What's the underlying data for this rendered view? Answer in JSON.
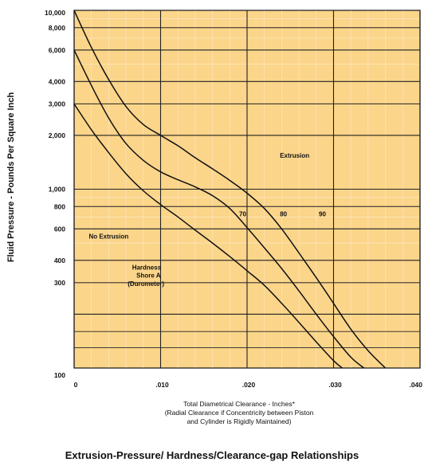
{
  "chart_data": {
    "type": "line",
    "title": "Extrusion-Pressure/ Hardness/Clearance-gap Relationships",
    "ylabel": "Fluid Pressure - Pounds Per Square Inch",
    "xlabel": "Total Diametrical Clearance - Inches*",
    "xlabel_note_line1": "(Radial Clearance if Concentricity between Piston",
    "xlabel_note_line2": "and Cylinder is Rigidly Maintained)",
    "x_scale": "linear",
    "y_scale": "log",
    "xlim": [
      0,
      0.04
    ],
    "ylim": [
      100,
      10000
    ],
    "x_ticks": [
      {
        "value": 0,
        "label": "0"
      },
      {
        "value": 0.01,
        "label": ".010"
      },
      {
        "value": 0.02,
        "label": ".020"
      },
      {
        "value": 0.03,
        "label": ".030"
      },
      {
        "value": 0.04,
        "label": ".040"
      }
    ],
    "y_ticks": [
      {
        "value": 100,
        "label": "100"
      },
      {
        "value": 300,
        "label": "300"
      },
      {
        "value": 400,
        "label": "400"
      },
      {
        "value": 600,
        "label": "600"
      },
      {
        "value": 800,
        "label": "800"
      },
      {
        "value": 1000,
        "label": "1,000"
      },
      {
        "value": 2000,
        "label": "2,000"
      },
      {
        "value": 3000,
        "label": "3,000"
      },
      {
        "value": 4000,
        "label": "4,000"
      },
      {
        "value": 6000,
        "label": "6,000"
      },
      {
        "value": 8000,
        "label": "8,000"
      },
      {
        "value": 10000,
        "label": "10,000"
      }
    ],
    "grid": true,
    "series": [
      {
        "name": "70",
        "x": [
          0,
          0.002,
          0.004,
          0.006,
          0.008,
          0.01,
          0.012,
          0.014,
          0.016,
          0.018,
          0.02,
          0.022,
          0.024,
          0.026,
          0.028,
          0.03,
          0.031
        ],
        "y": [
          3000,
          2150,
          1600,
          1220,
          980,
          820,
          700,
          590,
          500,
          420,
          350,
          290,
          230,
          180,
          140,
          110,
          100
        ]
      },
      {
        "name": "80",
        "x": [
          0,
          0.002,
          0.004,
          0.006,
          0.008,
          0.01,
          0.012,
          0.014,
          0.016,
          0.018,
          0.02,
          0.022,
          0.024,
          0.026,
          0.028,
          0.03,
          0.032,
          0.0335
        ],
        "y": [
          6000,
          3800,
          2500,
          1800,
          1450,
          1250,
          1130,
          1030,
          920,
          780,
          610,
          470,
          360,
          270,
          200,
          150,
          115,
          100
        ]
      },
      {
        "name": "90",
        "x": [
          0,
          0.002,
          0.004,
          0.006,
          0.008,
          0.01,
          0.012,
          0.014,
          0.016,
          0.018,
          0.02,
          0.022,
          0.024,
          0.026,
          0.028,
          0.03,
          0.032,
          0.034,
          0.036
        ],
        "y": [
          10000,
          6200,
          4100,
          2900,
          2300,
          2000,
          1750,
          1500,
          1300,
          1120,
          950,
          780,
          600,
          440,
          320,
          230,
          165,
          125,
          100
        ]
      }
    ],
    "annotations": [
      {
        "text": "Extrusion",
        "x": 0.0238,
        "y": 1500
      },
      {
        "text": "No Extrusion",
        "x": 0.0017,
        "y": 530
      },
      {
        "text": "Hardness",
        "x": 0.0067,
        "y": 355
      },
      {
        "text": "Shore A",
        "x": 0.0072,
        "y": 320
      },
      {
        "text": "(Durometer)",
        "x": 0.0062,
        "y": 288
      }
    ]
  }
}
